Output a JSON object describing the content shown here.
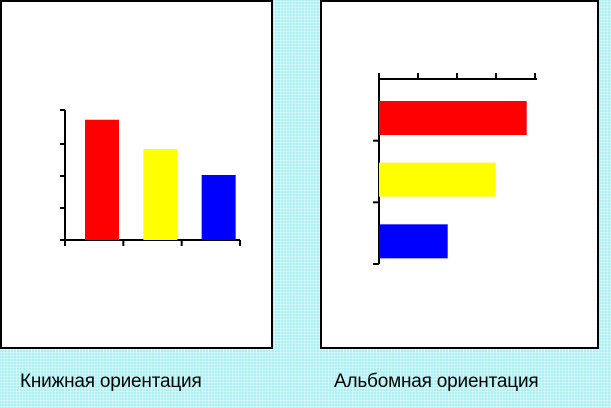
{
  "options": [
    {
      "id": "portrait",
      "label": "Книжная ориентация",
      "chart_data": {
        "type": "bar",
        "orientation": "vertical",
        "categories": [
          "",
          "",
          ""
        ],
        "values": [
          3.7,
          2.8,
          2.0
        ],
        "ylim": [
          0,
          4
        ],
        "colors": [
          "#ff0000",
          "#ffff00",
          "#0000ff"
        ],
        "grid": false,
        "legend": "none"
      }
    },
    {
      "id": "landscape",
      "label": "Альбомная ориентация",
      "chart_data": {
        "type": "bar",
        "orientation": "horizontal",
        "categories": [
          "",
          "",
          ""
        ],
        "values": [
          4.3,
          3.4,
          2.0
        ],
        "xlim": [
          0,
          4.6
        ],
        "colors": [
          "#ff0000",
          "#ffff00",
          "#0000ff"
        ],
        "grid": false,
        "legend": "none"
      }
    }
  ]
}
